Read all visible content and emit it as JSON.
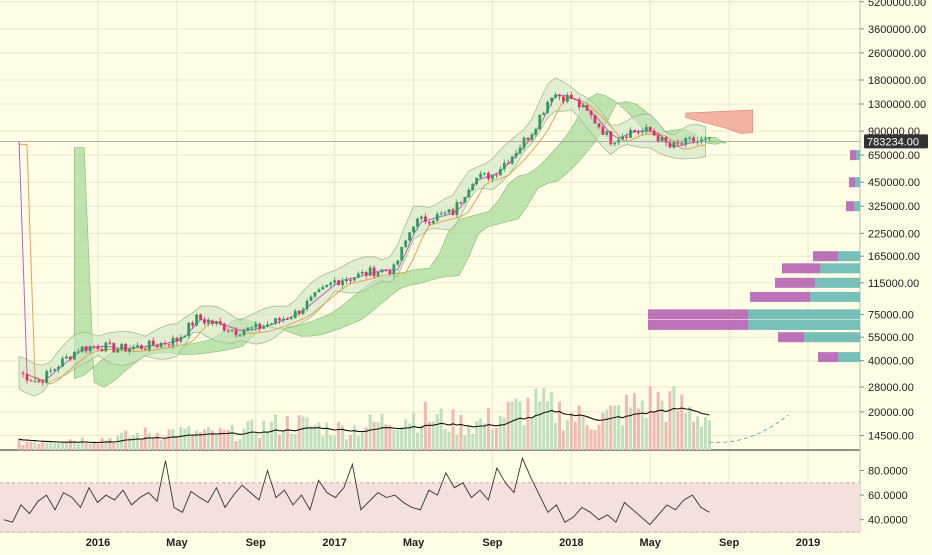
{
  "theme": {
    "background": "#fffde6",
    "grid": "#ece6c9",
    "axis_text": "#222222",
    "up_candle": "#2e9c5a",
    "down_candle": "#e0306a",
    "bb_fill": "#cde4c4",
    "bb_line": "#9bbf93",
    "ma_fast": "#c060c0",
    "ma_slow": "#e7a04e",
    "cloud_green": "#a9d99a",
    "cloud_red": "#f0a091",
    "vol_up": "#bfe0c0",
    "vol_down": "#f2b9b4",
    "vp_left": "#b05ab0",
    "vp_right": "#5fb5b0",
    "rsi_band": "#f4e0dc",
    "price_badge": "#333333"
  },
  "price_badge": "783234.00",
  "x_labels": [
    "2016",
    "May",
    "Sep",
    "2017",
    "May",
    "Sep",
    "2018",
    "May",
    "Sep",
    "2019"
  ],
  "chart_data": [
    {
      "type": "line",
      "title": "",
      "y_scale": "log",
      "ylim": [
        12500,
        6000000
      ],
      "y_tick_labels": [
        "5200000.00",
        "3600000.00",
        "2600000.00",
        "1800000.00",
        "1300000.00",
        "900000.00",
        "650000.00",
        "450000.00",
        "325000.00",
        "225000.00",
        "165000.00",
        "115000.00",
        "75000.00",
        "55000.00",
        "40000.00",
        "28000.00",
        "20000.00",
        "14500.00"
      ],
      "y_ticks": [
        5200000,
        3600000,
        2600000,
        1800000,
        1300000,
        900000,
        650000,
        450000,
        325000,
        225000,
        165000,
        115000,
        75000,
        55000,
        40000,
        28000,
        20000,
        14500
      ],
      "x_tick_labels": [
        "2016",
        "May",
        "Sep",
        "2017",
        "May",
        "Sep",
        "2018",
        "May",
        "Sep",
        "2019"
      ],
      "last_price": 783234,
      "price_series": [
        [
          "2015-09",
          34000
        ],
        [
          "2015-10",
          30000
        ],
        [
          "2015-11",
          38000
        ],
        [
          "2015-12",
          47000
        ],
        [
          "2016-01",
          49000
        ],
        [
          "2016-02",
          47000
        ],
        [
          "2016-03",
          48000
        ],
        [
          "2016-04",
          50000
        ],
        [
          "2016-05",
          53000
        ],
        [
          "2016-06",
          71000
        ],
        [
          "2016-07",
          66000
        ],
        [
          "2016-08",
          60000
        ],
        [
          "2016-09",
          62000
        ],
        [
          "2016-10",
          68000
        ],
        [
          "2016-11",
          76000
        ],
        [
          "2016-12",
          95000
        ],
        [
          "2017-01",
          118000
        ],
        [
          "2017-02",
          125000
        ],
        [
          "2017-03",
          135000
        ],
        [
          "2017-04",
          138000
        ],
        [
          "2017-05",
          260000
        ],
        [
          "2017-06",
          280000
        ],
        [
          "2017-07",
          300000
        ],
        [
          "2017-08",
          470000
        ],
        [
          "2017-09",
          500000
        ],
        [
          "2017-10",
          650000
        ],
        [
          "2017-11",
          900000
        ],
        [
          "2017-12",
          1500000
        ],
        [
          "2018-01",
          1400000
        ],
        [
          "2018-02",
          1100000
        ],
        [
          "2018-03",
          800000
        ],
        [
          "2018-04",
          900000
        ],
        [
          "2018-05",
          900000
        ],
        [
          "2018-06",
          720000
        ],
        [
          "2018-07",
          780000
        ],
        [
          "2018-08",
          783234
        ]
      ],
      "volume_profile": [
        {
          "price": 650000,
          "left": 6,
          "right": 4
        },
        {
          "price": 450000,
          "left": 6,
          "right": 5
        },
        {
          "price": 325000,
          "left": 8,
          "right": 6
        },
        {
          "price": 165000,
          "left": 25,
          "right": 22
        },
        {
          "price": 140000,
          "left": 38,
          "right": 40
        },
        {
          "price": 115000,
          "left": 40,
          "right": 45
        },
        {
          "price": 95000,
          "left": 60,
          "right": 50
        },
        {
          "price": 75000,
          "left": 100,
          "right": 112
        },
        {
          "price": 65000,
          "left": 100,
          "right": 112
        },
        {
          "price": 55000,
          "left": 26,
          "right": 56
        },
        {
          "price": 42000,
          "left": 20,
          "right": 22
        }
      ]
    },
    {
      "type": "line",
      "title": "",
      "ylim": [
        30,
        95
      ],
      "band": [
        30,
        70
      ],
      "y_tick_labels": [
        "80.0000",
        "60.0000",
        "40.0000"
      ],
      "y_ticks": [
        80,
        60,
        40
      ],
      "rsi_series": [
        40,
        38,
        52,
        45,
        55,
        60,
        48,
        62,
        58,
        50,
        66,
        54,
        60,
        56,
        64,
        52,
        58,
        62,
        55,
        88,
        50,
        46,
        63,
        58,
        54,
        66,
        50,
        60,
        68,
        62,
        56,
        80,
        58,
        64,
        52,
        60,
        48,
        72,
        62,
        58,
        66,
        85,
        48,
        55,
        62,
        58,
        60,
        54,
        50,
        48,
        64,
        60,
        78,
        66,
        70,
        58,
        64,
        56,
        82,
        70,
        62,
        90,
        74,
        60,
        46,
        52,
        38,
        42,
        50,
        46,
        40,
        44,
        38,
        54,
        48,
        42,
        36,
        44,
        52,
        48,
        56,
        60,
        50,
        46
      ]
    }
  ]
}
